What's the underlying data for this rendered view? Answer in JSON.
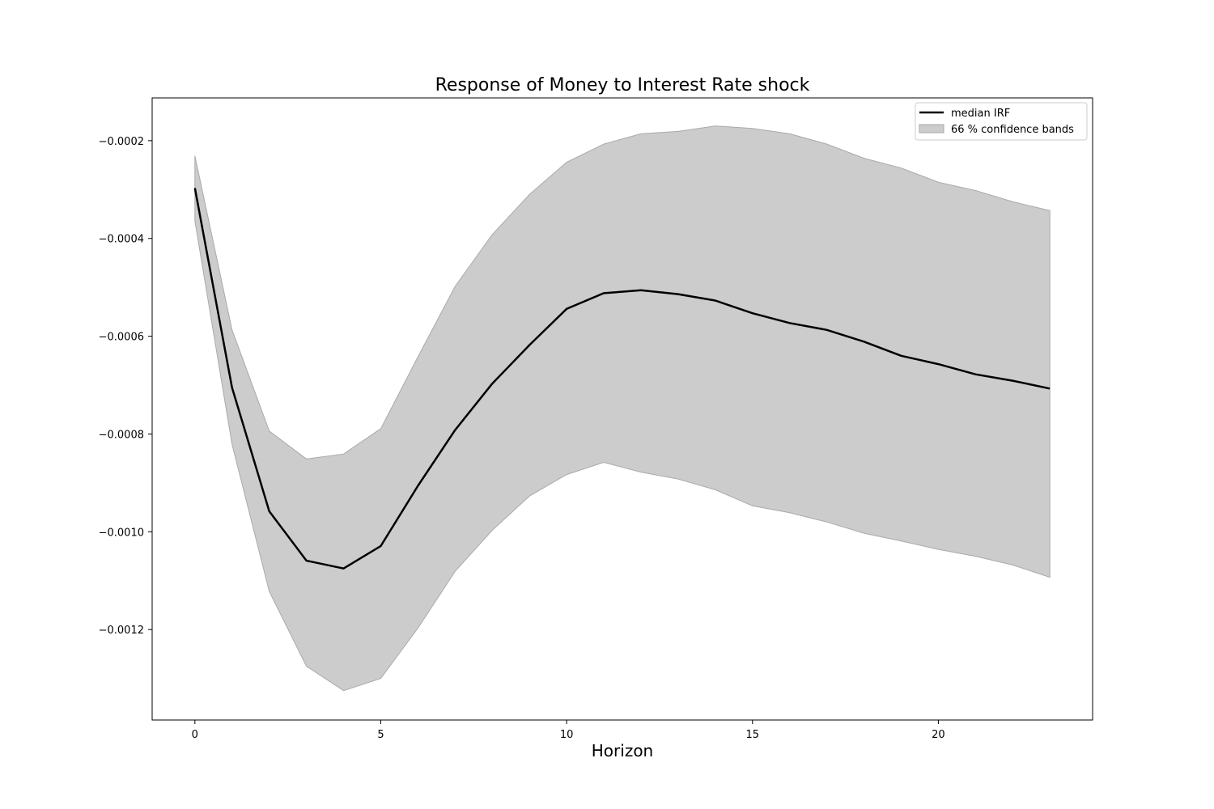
{
  "chart_data": {
    "type": "line",
    "title": "Response of Money to Interest Rate shock",
    "xlabel": "Horizon",
    "ylabel": "",
    "xlim": [
      -1.15,
      24.15
    ],
    "ylim": [
      -0.001385,
      -0.0001125
    ],
    "x_ticks": [
      0,
      5,
      10,
      15,
      20
    ],
    "x_tick_labels": [
      "0",
      "5",
      "10",
      "15",
      "20"
    ],
    "y_ticks": [
      -0.0002,
      -0.0004,
      -0.0006,
      -0.0008,
      -0.001,
      -0.0012
    ],
    "y_tick_labels": [
      "−0.0002",
      "−0.0004",
      "−0.0006",
      "−0.0008",
      "−0.0010",
      "−0.0012"
    ],
    "grid": false,
    "legend_position": "top-right",
    "x": [
      0,
      1,
      2,
      3,
      4,
      5,
      6,
      7,
      8,
      9,
      10,
      11,
      12,
      13,
      14,
      15,
      16,
      17,
      18,
      19,
      20,
      21,
      22,
      23
    ],
    "series": [
      {
        "name": "median IRF",
        "color": "#000000",
        "values": [
          -0.000297,
          -0.000705,
          -0.000958,
          -0.001059,
          -0.001075,
          -0.001029,
          -0.000906,
          -0.000792,
          -0.000697,
          -0.000618,
          -0.000544,
          -0.000512,
          -0.000506,
          -0.000514,
          -0.000527,
          -0.000553,
          -0.000573,
          -0.000587,
          -0.000611,
          -0.00064,
          -0.000657,
          -0.000678,
          -0.000691,
          -0.000707
        ]
      }
    ],
    "band": {
      "name": "66 % confidence bands",
      "color": "#cccccc",
      "edge_color": "#aaaaaa",
      "upper": [
        -0.000231,
        -0.000587,
        -0.000794,
        -0.000851,
        -0.000841,
        -0.000789,
        -0.000642,
        -0.000498,
        -0.000392,
        -0.00031,
        -0.000244,
        -0.000207,
        -0.000186,
        -0.000181,
        -0.00017,
        -0.000175,
        -0.000186,
        -0.000207,
        -0.000236,
        -0.000256,
        -0.000285,
        -0.000302,
        -0.000325,
        -0.000343
      ],
      "lower": [
        -0.000364,
        -0.000821,
        -0.001122,
        -0.001275,
        -0.001325,
        -0.0013,
        -0.001197,
        -0.001081,
        -0.000997,
        -0.000927,
        -0.000883,
        -0.000858,
        -0.000878,
        -0.000892,
        -0.000914,
        -0.000947,
        -0.000961,
        -0.00098,
        -0.001003,
        -0.001019,
        -0.001036,
        -0.00105,
        -0.001068,
        -0.001093
      ]
    }
  }
}
